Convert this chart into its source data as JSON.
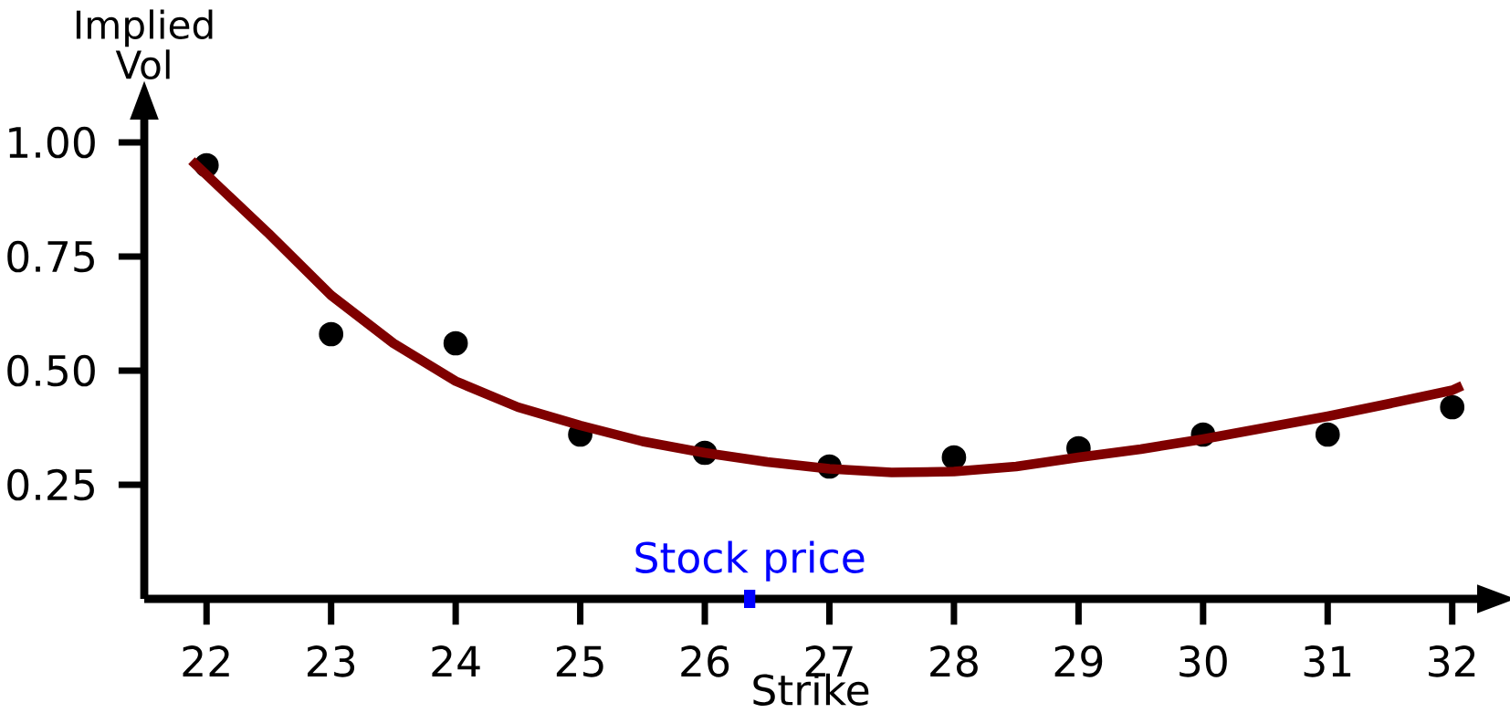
{
  "chart_data": {
    "type": "scatter",
    "xlabel": "Strike",
    "ylabel": "Implied Vol",
    "xlim": [
      21.5,
      32.2
    ],
    "ylim": [
      0,
      1.05
    ],
    "xticks": [
      22,
      23,
      24,
      25,
      26,
      27,
      28,
      29,
      30,
      31,
      32
    ],
    "yticks": [
      {
        "value": 0.25,
        "label": "0.25"
      },
      {
        "value": 0.5,
        "label": "0.50"
      },
      {
        "value": 0.75,
        "label": "0.75"
      },
      {
        "value": 1.0,
        "label": "1.00"
      }
    ],
    "grid": false,
    "series": [
      {
        "marker": "circle",
        "color": "#000000",
        "x": [
          22,
          23,
          24,
          25,
          26,
          27,
          28,
          29,
          30,
          31,
          32
        ],
        "values": [
          0.95,
          0.58,
          0.56,
          0.36,
          0.32,
          0.29,
          0.31,
          0.33,
          0.36,
          0.36,
          0.42
        ]
      },
      {
        "type": "line",
        "marker": "none",
        "color": "#7f0000",
        "x": [
          21.88,
          22.5,
          23,
          23.5,
          24,
          24.5,
          25,
          25.5,
          26,
          26.5,
          27,
          27.5,
          28,
          28.5,
          29,
          29.5,
          30,
          30.5,
          31,
          31.5,
          32,
          32.08
        ],
        "values": [
          0.96,
          0.8,
          0.665,
          0.56,
          0.477,
          0.42,
          0.38,
          0.345,
          0.32,
          0.3,
          0.285,
          0.277,
          0.279,
          0.29,
          0.31,
          0.328,
          0.35,
          0.375,
          0.4,
          0.428,
          0.457,
          0.467
        ]
      }
    ],
    "ref_lines": [
      {
        "axis": "x",
        "value": 26.36,
        "label": "Stock price",
        "color": "#0000ff"
      }
    ]
  }
}
